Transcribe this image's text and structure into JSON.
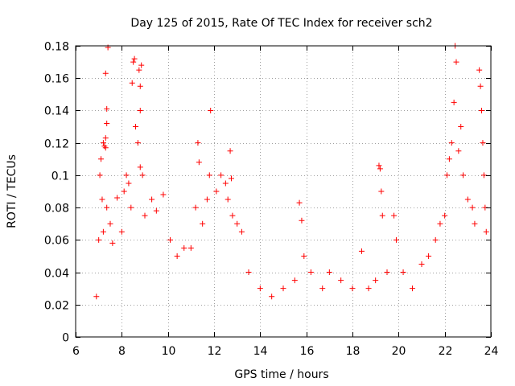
{
  "chart_data": {
    "type": "scatter",
    "title": "Day 125 of 2015, Rate Of TEC Index for receiver sch2",
    "xlabel": "GPS time / hours",
    "ylabel": "ROTI / TECUs",
    "xlim": [
      6,
      24
    ],
    "ylim": [
      0,
      0.18
    ],
    "xticks": [
      6,
      8,
      10,
      12,
      14,
      16,
      18,
      20,
      22,
      24
    ],
    "yticks": [
      0,
      0.02,
      0.04,
      0.06,
      0.08,
      0.1,
      0.12,
      0.14,
      0.16,
      0.18
    ],
    "xtick_labels": [
      "6",
      "8",
      "10",
      "12",
      "14",
      "16",
      "18",
      "20",
      "22",
      "24"
    ],
    "ytick_labels": [
      "0",
      "0.02",
      "0.04",
      "0.06",
      "0.08",
      "0.1",
      "0.12",
      "0.14",
      "0.16",
      "0.18"
    ],
    "grid": true,
    "marker": "+",
    "color": "#ff0000",
    "series": [
      {
        "name": "ROTI",
        "points": [
          [
            6.9,
            0.025
          ],
          [
            7.0,
            0.06
          ],
          [
            7.05,
            0.1
          ],
          [
            7.1,
            0.11
          ],
          [
            7.15,
            0.085
          ],
          [
            7.2,
            0.12
          ],
          [
            7.25,
            0.118
          ],
          [
            7.3,
            0.163
          ],
          [
            7.35,
            0.141
          ],
          [
            7.4,
            0.179
          ],
          [
            7.35,
            0.132
          ],
          [
            7.3,
            0.123
          ],
          [
            7.3,
            0.117
          ],
          [
            7.35,
            0.08
          ],
          [
            7.2,
            0.065
          ],
          [
            7.5,
            0.07
          ],
          [
            7.6,
            0.058
          ],
          [
            7.8,
            0.086
          ],
          [
            8.0,
            0.065
          ],
          [
            8.1,
            0.09
          ],
          [
            8.2,
            0.1
          ],
          [
            8.3,
            0.095
          ],
          [
            8.4,
            0.08
          ],
          [
            8.45,
            0.157
          ],
          [
            8.5,
            0.17
          ],
          [
            8.55,
            0.172
          ],
          [
            8.6,
            0.13
          ],
          [
            8.7,
            0.12
          ],
          [
            8.75,
            0.165
          ],
          [
            8.8,
            0.155
          ],
          [
            8.85,
            0.168
          ],
          [
            8.8,
            0.14
          ],
          [
            8.8,
            0.105
          ],
          [
            8.9,
            0.1
          ],
          [
            9.0,
            0.075
          ],
          [
            9.3,
            0.085
          ],
          [
            9.5,
            0.078
          ],
          [
            9.8,
            0.088
          ],
          [
            10.1,
            0.06
          ],
          [
            10.4,
            0.05
          ],
          [
            10.7,
            0.055
          ],
          [
            11.0,
            0.055
          ],
          [
            11.2,
            0.08
          ],
          [
            11.3,
            0.12
          ],
          [
            11.35,
            0.108
          ],
          [
            11.5,
            0.07
          ],
          [
            11.7,
            0.085
          ],
          [
            11.8,
            0.1
          ],
          [
            11.85,
            0.14
          ],
          [
            12.1,
            0.09
          ],
          [
            12.3,
            0.1
          ],
          [
            12.5,
            0.095
          ],
          [
            12.6,
            0.085
          ],
          [
            12.7,
            0.115
          ],
          [
            12.75,
            0.098
          ],
          [
            12.8,
            0.075
          ],
          [
            13.0,
            0.07
          ],
          [
            13.2,
            0.065
          ],
          [
            13.5,
            0.04
          ],
          [
            14.0,
            0.03
          ],
          [
            14.5,
            0.025
          ],
          [
            15.0,
            0.03
          ],
          [
            15.5,
            0.035
          ],
          [
            15.7,
            0.083
          ],
          [
            15.8,
            0.072
          ],
          [
            15.9,
            0.05
          ],
          [
            16.2,
            0.04
          ],
          [
            16.7,
            0.03
          ],
          [
            17.0,
            0.04
          ],
          [
            17.5,
            0.035
          ],
          [
            18.0,
            0.03
          ],
          [
            18.4,
            0.053
          ],
          [
            18.7,
            0.03
          ],
          [
            19.0,
            0.035
          ],
          [
            19.15,
            0.106
          ],
          [
            19.2,
            0.104
          ],
          [
            19.25,
            0.09
          ],
          [
            19.3,
            0.075
          ],
          [
            19.5,
            0.04
          ],
          [
            19.8,
            0.075
          ],
          [
            19.9,
            0.06
          ],
          [
            20.2,
            0.04
          ],
          [
            20.6,
            0.03
          ],
          [
            21.0,
            0.045
          ],
          [
            21.3,
            0.05
          ],
          [
            21.6,
            0.06
          ],
          [
            21.8,
            0.07
          ],
          [
            22.0,
            0.075
          ],
          [
            22.1,
            0.1
          ],
          [
            22.2,
            0.11
          ],
          [
            22.3,
            0.12
          ],
          [
            22.4,
            0.145
          ],
          [
            22.45,
            0.18
          ],
          [
            22.5,
            0.17
          ],
          [
            22.6,
            0.115
          ],
          [
            22.7,
            0.13
          ],
          [
            22.8,
            0.1
          ],
          [
            23.0,
            0.085
          ],
          [
            23.2,
            0.08
          ],
          [
            23.3,
            0.07
          ],
          [
            23.5,
            0.165
          ],
          [
            23.55,
            0.155
          ],
          [
            23.6,
            0.14
          ],
          [
            23.65,
            0.12
          ],
          [
            23.7,
            0.1
          ],
          [
            23.75,
            0.08
          ],
          [
            23.8,
            0.065
          ]
        ]
      }
    ]
  }
}
